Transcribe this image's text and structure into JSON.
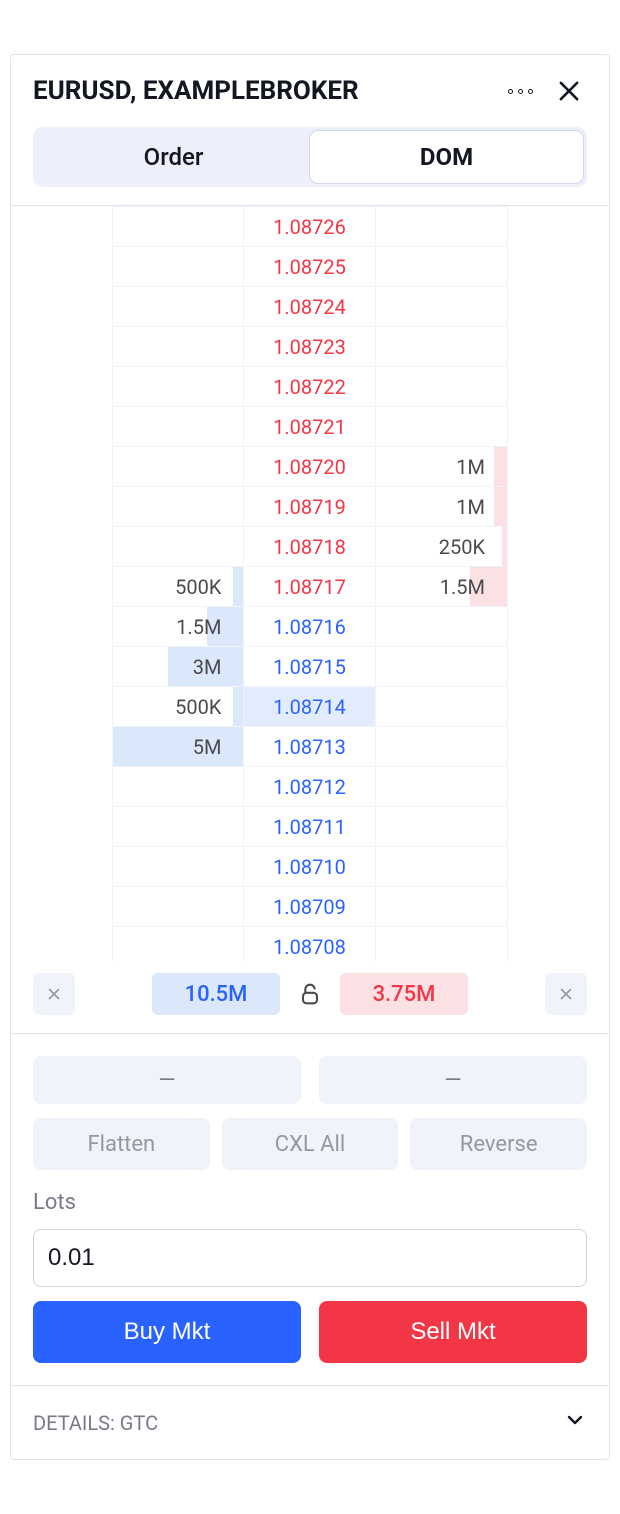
{
  "header": {
    "title": "EURUSD, EXAMPLEBROKER"
  },
  "tabs": {
    "order": "Order",
    "dom": "DOM"
  },
  "colors": {
    "bid": "#2962ff",
    "ask": "#f23645",
    "bid_bg": "#dbe7fb",
    "ask_bg": "#fbe1e3",
    "highlight_bg": "#e3ecfd"
  },
  "dom": {
    "rows": [
      {
        "bid_vol": "",
        "price": "1.08726",
        "side": "ask",
        "ask_vol": "",
        "bid_bar": 0,
        "ask_bar": 0,
        "highlight": false
      },
      {
        "bid_vol": "",
        "price": "1.08725",
        "side": "ask",
        "ask_vol": "",
        "bid_bar": 0,
        "ask_bar": 0,
        "highlight": false
      },
      {
        "bid_vol": "",
        "price": "1.08724",
        "side": "ask",
        "ask_vol": "",
        "bid_bar": 0,
        "ask_bar": 0,
        "highlight": false
      },
      {
        "bid_vol": "",
        "price": "1.08723",
        "side": "ask",
        "ask_vol": "",
        "bid_bar": 0,
        "ask_bar": 0,
        "highlight": false
      },
      {
        "bid_vol": "",
        "price": "1.08722",
        "side": "ask",
        "ask_vol": "",
        "bid_bar": 0,
        "ask_bar": 0,
        "highlight": false
      },
      {
        "bid_vol": "",
        "price": "1.08721",
        "side": "ask",
        "ask_vol": "",
        "bid_bar": 0,
        "ask_bar": 0,
        "highlight": false
      },
      {
        "bid_vol": "",
        "price": "1.08720",
        "side": "ask",
        "ask_vol": "1M",
        "bid_bar": 0,
        "ask_bar": 10,
        "highlight": false
      },
      {
        "bid_vol": "",
        "price": "1.08719",
        "side": "ask",
        "ask_vol": "1M",
        "bid_bar": 0,
        "ask_bar": 10,
        "highlight": false
      },
      {
        "bid_vol": "",
        "price": "1.08718",
        "side": "ask",
        "ask_vol": "250K",
        "bid_bar": 0,
        "ask_bar": 4,
        "highlight": false
      },
      {
        "bid_vol": "500K",
        "price": "1.08717",
        "side": "ask",
        "ask_vol": "1.5M",
        "bid_bar": 8,
        "ask_bar": 28,
        "highlight": false
      },
      {
        "bid_vol": "1.5M",
        "price": "1.08716",
        "side": "bid",
        "ask_vol": "",
        "bid_bar": 28,
        "ask_bar": 0,
        "highlight": false
      },
      {
        "bid_vol": "3M",
        "price": "1.08715",
        "side": "bid",
        "ask_vol": "",
        "bid_bar": 58,
        "ask_bar": 0,
        "highlight": false
      },
      {
        "bid_vol": "500K",
        "price": "1.08714",
        "side": "bid",
        "ask_vol": "",
        "bid_bar": 8,
        "ask_bar": 0,
        "highlight": true
      },
      {
        "bid_vol": "5M",
        "price": "1.08713",
        "side": "bid",
        "ask_vol": "",
        "bid_bar": 100,
        "ask_bar": 0,
        "highlight": false
      },
      {
        "bid_vol": "",
        "price": "1.08712",
        "side": "bid",
        "ask_vol": "",
        "bid_bar": 0,
        "ask_bar": 0,
        "highlight": false
      },
      {
        "bid_vol": "",
        "price": "1.08711",
        "side": "bid",
        "ask_vol": "",
        "bid_bar": 0,
        "ask_bar": 0,
        "highlight": false
      },
      {
        "bid_vol": "",
        "price": "1.08710",
        "side": "bid",
        "ask_vol": "",
        "bid_bar": 0,
        "ask_bar": 0,
        "highlight": false
      },
      {
        "bid_vol": "",
        "price": "1.08709",
        "side": "bid",
        "ask_vol": "",
        "bid_bar": 0,
        "ask_bar": 0,
        "highlight": false
      },
      {
        "bid_vol": "",
        "price": "1.08708",
        "side": "bid",
        "ask_vol": "",
        "bid_bar": 0,
        "ask_bar": 0,
        "highlight": false
      }
    ]
  },
  "totals": {
    "bid": "10.5M",
    "ask": "3.75M"
  },
  "position": {
    "dash1": "—",
    "dash2": "—",
    "flatten": "Flatten",
    "cxl_all": "CXL All",
    "reverse": "Reverse"
  },
  "lots": {
    "label": "Lots",
    "value": "0.01"
  },
  "buttons": {
    "buy": "Buy Mkt",
    "sell": "Sell Mkt"
  },
  "details": {
    "label": "DETAILS: GTC"
  }
}
